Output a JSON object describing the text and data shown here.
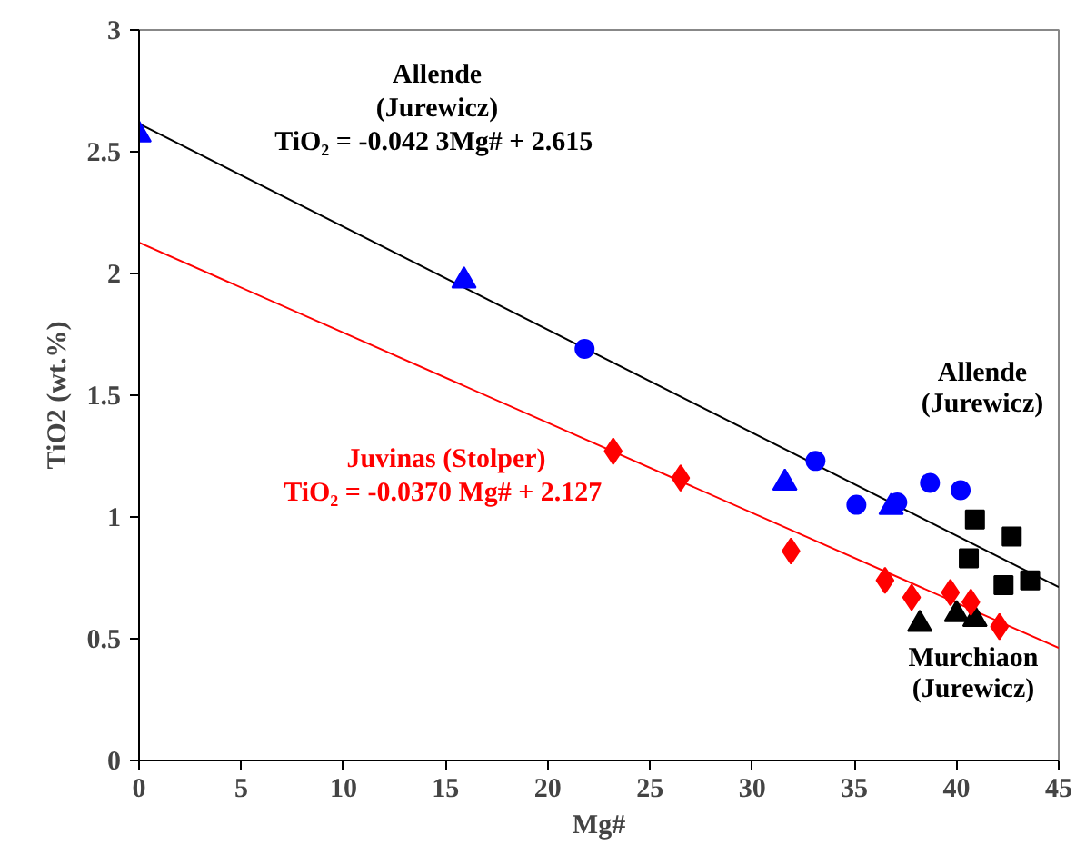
{
  "chart_data": {
    "type": "scatter",
    "xlabel": "Mg#",
    "ylabel": "TiO2 (wt.%)",
    "xlim": [
      0,
      45
    ],
    "ylim": [
      0,
      3
    ],
    "xticks": [
      0,
      5,
      10,
      15,
      20,
      25,
      30,
      35,
      40,
      45
    ],
    "yticks": [
      0,
      0.5,
      1,
      1.5,
      2,
      2.5,
      3
    ],
    "grid": false,
    "series": [
      {
        "type": "line",
        "name": "Allende\n(Jurewicz)\nTiO₂ = -0.042 3Mg# +  2.615",
        "color": "#000000",
        "x": [
          0,
          45
        ],
        "values": [
          2.615,
          0.712
        ],
        "marker": "none"
      },
      {
        "type": "line",
        "name": "Juvinas (Stolper)\nTiO₂ = -0.0370 Mg# +  2.127",
        "color": "#ff0000",
        "x": [
          0,
          45
        ],
        "values": [
          2.127,
          0.462
        ],
        "marker": "none"
      },
      {
        "color": "#0000ff",
        "marker": "circle",
        "x": [
          21.8,
          33.1,
          35.1,
          37.1,
          38.7,
          40.2
        ],
        "values": [
          1.69,
          1.23,
          1.05,
          1.06,
          1.14,
          1.11
        ]
      },
      {
        "color": "#0000ff",
        "marker": "triangle",
        "x": [
          0,
          15.9,
          31.6,
          36.8
        ],
        "values": [
          2.57,
          1.97,
          1.14,
          1.04
        ]
      },
      {
        "color": "#000000",
        "marker": "square",
        "x": [
          40.9,
          42.7,
          40.6,
          42.3,
          43.6
        ],
        "values": [
          0.99,
          0.92,
          0.83,
          0.72,
          0.74
        ]
      },
      {
        "color": "#000000",
        "marker": "triangle",
        "x": [
          38.2,
          40.0,
          40.9
        ],
        "values": [
          0.56,
          0.6,
          0.58
        ]
      },
      {
        "color": "#ff0000",
        "marker": "diamond",
        "x": [
          23.2,
          26.5,
          31.9,
          36.5,
          37.8,
          39.7,
          40.7,
          42.1
        ],
        "values": [
          1.27,
          1.16,
          0.86,
          0.74,
          0.67,
          0.69,
          0.65,
          0.55
        ]
      }
    ],
    "annotations": [
      "Allende\n(Jurewicz)",
      "Murchiaon\n(Jurewicz)"
    ]
  }
}
